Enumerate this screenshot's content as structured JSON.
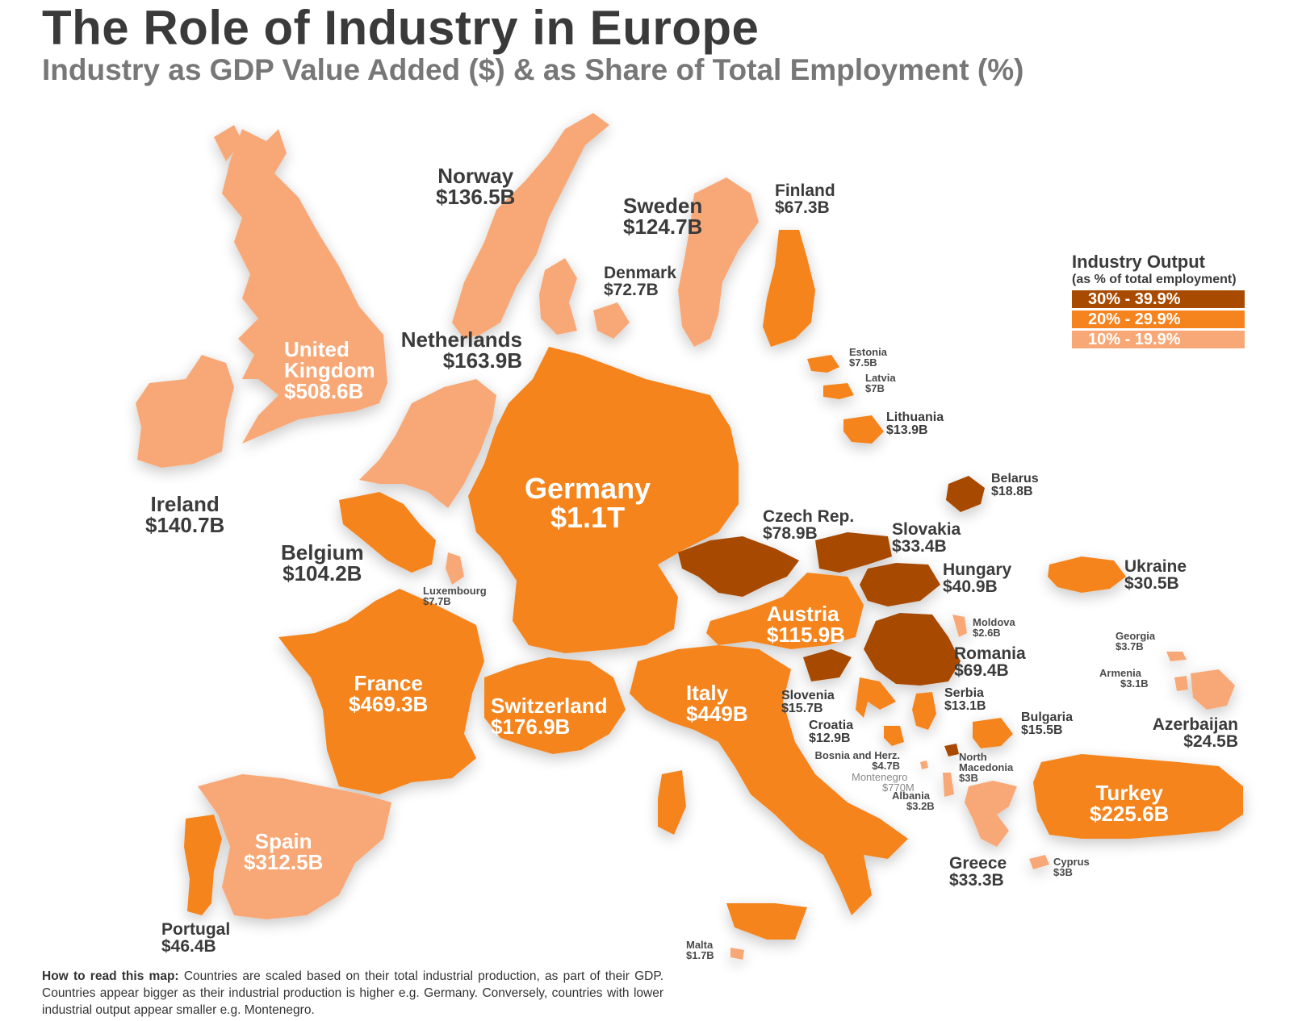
{
  "header": {
    "title": "The Role of Industry in Europe",
    "subtitle": "Industry as GDP Value Added ($) & as Share of Total Employment (%)"
  },
  "legend": {
    "title": "Industry Output",
    "subtitle": "(as % of total employment)",
    "items": [
      {
        "label": "30% - 39.9%",
        "color": "#a84a00"
      },
      {
        "label": "20% - 29.9%",
        "color": "#f5841f"
      },
      {
        "label": "10% - 19.9%",
        "color": "#f8a876"
      }
    ]
  },
  "countries": {
    "germany": {
      "name": "Germany",
      "value": "$1.1T",
      "band": "20% - 29.9%"
    },
    "uk": {
      "name_line1": "United",
      "name_line2": "Kingdom",
      "value": "$508.6B",
      "band": "10% - 19.9%"
    },
    "france": {
      "name": "France",
      "value": "$469.3B",
      "band": "20% - 29.9%"
    },
    "italy": {
      "name": "Italy",
      "value": "$449B",
      "band": "20% - 29.9%"
    },
    "spain": {
      "name": "Spain",
      "value": "$312.5B",
      "band": "10% - 19.9%"
    },
    "turkey": {
      "name": "Turkey",
      "value": "$225.6B",
      "band": "20% - 29.9%"
    },
    "switzerland": {
      "name": "Switzerland",
      "value": "$176.9B",
      "band": "20% - 29.9%"
    },
    "netherlands": {
      "name": "Netherlands",
      "value": "$163.9B",
      "band": "10% - 19.9%"
    },
    "ireland": {
      "name": "Ireland",
      "value": "$140.7B",
      "band": "10% - 19.9%"
    },
    "norway": {
      "name": "Norway",
      "value": "$136.5B",
      "band": "10% - 19.9%"
    },
    "sweden": {
      "name": "Sweden",
      "value": "$124.7B",
      "band": "10% - 19.9%"
    },
    "austria": {
      "name": "Austria",
      "value": "$115.9B",
      "band": "20% - 29.9%"
    },
    "belgium": {
      "name": "Belgium",
      "value": "$104.2B",
      "band": "20% - 29.9%"
    },
    "czech": {
      "name": "Czech Rep.",
      "value": "$78.9B",
      "band": "30% - 39.9%"
    },
    "denmark": {
      "name": "Denmark",
      "value": "$72.7B",
      "band": "10% - 19.9%"
    },
    "romania": {
      "name": "Romania",
      "value": "$69.4B",
      "band": "30% - 39.9%"
    },
    "finland": {
      "name": "Finland",
      "value": "$67.3B",
      "band": "20% - 29.9%"
    },
    "portugal": {
      "name": "Portugal",
      "value": "$46.4B",
      "band": "20% - 29.9%"
    },
    "hungary": {
      "name": "Hungary",
      "value": "$40.9B",
      "band": "30% - 39.9%"
    },
    "slovakia": {
      "name": "Slovakia",
      "value": "$33.4B",
      "band": "30% - 39.9%"
    },
    "greece": {
      "name": "Greece",
      "value": "$33.3B",
      "band": "10% - 19.9%"
    },
    "ukraine": {
      "name": "Ukraine",
      "value": "$30.5B",
      "band": "20% - 29.9%"
    },
    "azerbaijan": {
      "name": "Azerbaijan",
      "value": "$24.5B",
      "band": "10% - 19.9%"
    },
    "belarus": {
      "name": "Belarus",
      "value": "$18.8B",
      "band": "30% - 39.9%"
    },
    "slovenia": {
      "name": "Slovenia",
      "value": "$15.7B",
      "band": "30% - 39.9%"
    },
    "bulgaria": {
      "name": "Bulgaria",
      "value": "$15.5B",
      "band": "20% - 29.9%"
    },
    "lithuania": {
      "name": "Lithuania",
      "value": "$13.9B",
      "band": "20% - 29.9%"
    },
    "serbia": {
      "name": "Serbia",
      "value": "$13.1B",
      "band": "20% - 29.9%"
    },
    "croatia": {
      "name": "Croatia",
      "value": "$12.9B",
      "band": "20% - 29.9%"
    },
    "luxembourg": {
      "name": "Luxembourg",
      "value": "$7.7B",
      "band": "10% - 19.9%"
    },
    "estonia": {
      "name": "Estonia",
      "value": "$7.5B",
      "band": "20% - 29.9%"
    },
    "latvia": {
      "name": "Latvia",
      "value": "$7B",
      "band": "20% - 29.9%"
    },
    "bosnia": {
      "name": "Bosnia and Herz.",
      "value": "$4.7B",
      "band": "20% - 29.9%"
    },
    "georgia": {
      "name": "Georgia",
      "value": "$3.7B",
      "band": "10% - 19.9%"
    },
    "albania": {
      "name": "Albania",
      "value": "$3.2B",
      "band": "10% - 19.9%"
    },
    "armenia": {
      "name": "Armenia",
      "value": "$3.1B",
      "band": "10% - 19.9%"
    },
    "north_macedonia": {
      "name_line1": "North",
      "name_line2": "Macedonia",
      "value": "$3B",
      "band": "30% - 39.9%"
    },
    "cyprus": {
      "name": "Cyprus",
      "value": "$3B",
      "band": "10% - 19.9%"
    },
    "moldova": {
      "name": "Moldova",
      "value": "$2.6B",
      "band": "10% - 19.9%"
    },
    "malta": {
      "name": "Malta",
      "value": "$1.7B",
      "band": "10% - 19.9%"
    },
    "montenegro": {
      "name": "Montenegro",
      "value": "$770M",
      "band": "10% - 19.9%"
    }
  },
  "note": {
    "lead": "How to read this map:",
    "text": " Countries are scaled based on their total industrial production, as part of their GDP. Countries appear bigger as their industrial production is higher e.g. Germany. Conversely, countries with lower industrial output appear smaller e.g. Montenegro."
  }
}
